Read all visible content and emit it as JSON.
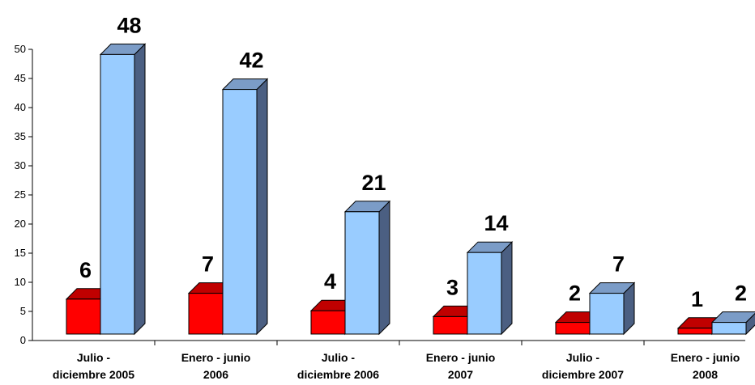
{
  "chart_data": {
    "type": "bar",
    "style": "3d-clustered-column",
    "title": "",
    "xlabel": "",
    "ylabel": "",
    "ylim": [
      0,
      50
    ],
    "yticks": [
      0,
      5,
      10,
      15,
      20,
      25,
      30,
      35,
      40,
      45,
      50
    ],
    "grid": false,
    "legend": "none",
    "categories": [
      [
        "Julio -",
        "diciembre 2005"
      ],
      [
        "Enero - junio",
        "2006"
      ],
      [
        "Julio -",
        "diciembre 2006"
      ],
      [
        "Enero - junio",
        "2007"
      ],
      [
        "Julio -",
        "diciembre 2007"
      ],
      [
        "Enero - junio",
        "2008"
      ]
    ],
    "series": [
      {
        "values": [
          6,
          7,
          4,
          3,
          2,
          1
        ],
        "color": "#ff0000",
        "side_color": "#800000",
        "top_color": "#c00000"
      },
      {
        "values": [
          48,
          42,
          21,
          14,
          7,
          2
        ],
        "color": "#99ccff",
        "side_color": "#4b5f82",
        "top_color": "#7b9cc7"
      }
    ]
  }
}
